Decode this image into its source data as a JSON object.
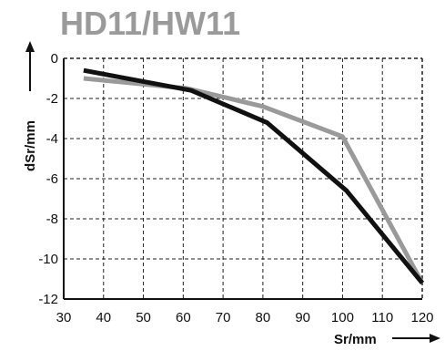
{
  "colors": {
    "title": "#9a9a9a",
    "axis": "#111111",
    "grid": "#222222",
    "series_dark": "#111111",
    "series_light": "#9a9a9a"
  },
  "chart_data": {
    "type": "line",
    "title": "HD11/HW11",
    "xlabel": "Sr/mm",
    "ylabel": "dSr/mm",
    "xlim": [
      30,
      120
    ],
    "ylim": [
      -12,
      0
    ],
    "x_ticks": [
      "30",
      "40",
      "50",
      "60",
      "70",
      "80",
      "90",
      "100",
      "110",
      "120"
    ],
    "y_ticks": [
      "0",
      "-2",
      "-4",
      "-6",
      "-8",
      "-10",
      "-12"
    ],
    "grid": true,
    "series": [
      {
        "color": "#111111",
        "points": [
          [
            35,
            -0.6
          ],
          [
            62,
            -1.6
          ],
          [
            81,
            -3.2
          ],
          [
            101,
            -6.6
          ],
          [
            120,
            -11.2
          ]
        ]
      },
      {
        "color": "#9a9a9a",
        "points": [
          [
            35,
            -1.0
          ],
          [
            61,
            -1.5
          ],
          [
            80,
            -2.4
          ],
          [
            100,
            -3.9
          ],
          [
            120,
            -11.2
          ]
        ]
      }
    ]
  }
}
